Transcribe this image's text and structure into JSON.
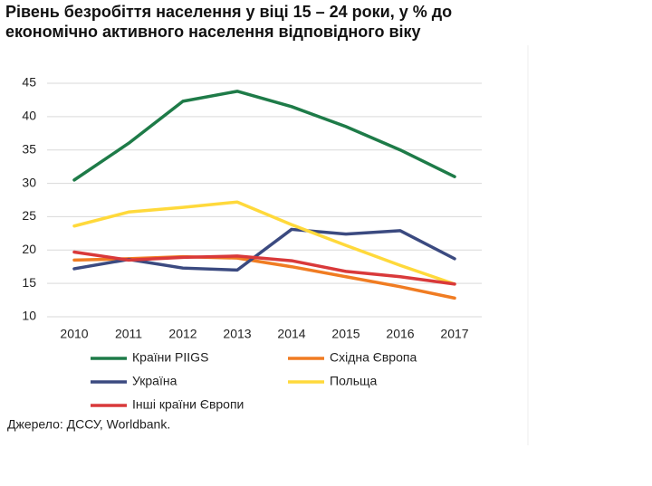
{
  "chart_data": {
    "type": "line",
    "title": [
      "Рівень безробіття населення у віці 15 – 24 роки, у % до",
      "економічно активного населення відповідного віку"
    ],
    "categories": [
      "2010",
      "2011",
      "2012",
      "2013",
      "2014",
      "2015",
      "2016",
      "2017"
    ],
    "series": [
      {
        "name": "Країни PIIGS",
        "color": "#1e7b48",
        "values": [
          30.5,
          36,
          42.3,
          43.8,
          41.5,
          38.5,
          35,
          31
        ]
      },
      {
        "name": "Східна Європа",
        "color": "#f07c22",
        "values": [
          18.5,
          18.7,
          19,
          18.8,
          17.5,
          16,
          14.5,
          12.8
        ]
      },
      {
        "name": "Україна",
        "color": "#3b4a80",
        "values": [
          17.2,
          18.6,
          17.3,
          17,
          23.1,
          22.4,
          22.9,
          18.7
        ]
      },
      {
        "name": "Польща",
        "color": "#ffd93b",
        "values": [
          23.6,
          25.7,
          26.4,
          27.2,
          23.8,
          20.7,
          17.7,
          14.9
        ]
      },
      {
        "name": "Інші країни Європи",
        "color": "#d9393a",
        "values": [
          19.7,
          18.5,
          18.9,
          19.1,
          18.4,
          16.8,
          16,
          14.9
        ]
      }
    ],
    "ylim": [
      10,
      45
    ],
    "yticks": [
      10,
      15,
      20,
      25,
      30,
      35,
      40,
      45
    ],
    "grid": true,
    "source": "Джерело: ДССУ, Worldbank."
  }
}
